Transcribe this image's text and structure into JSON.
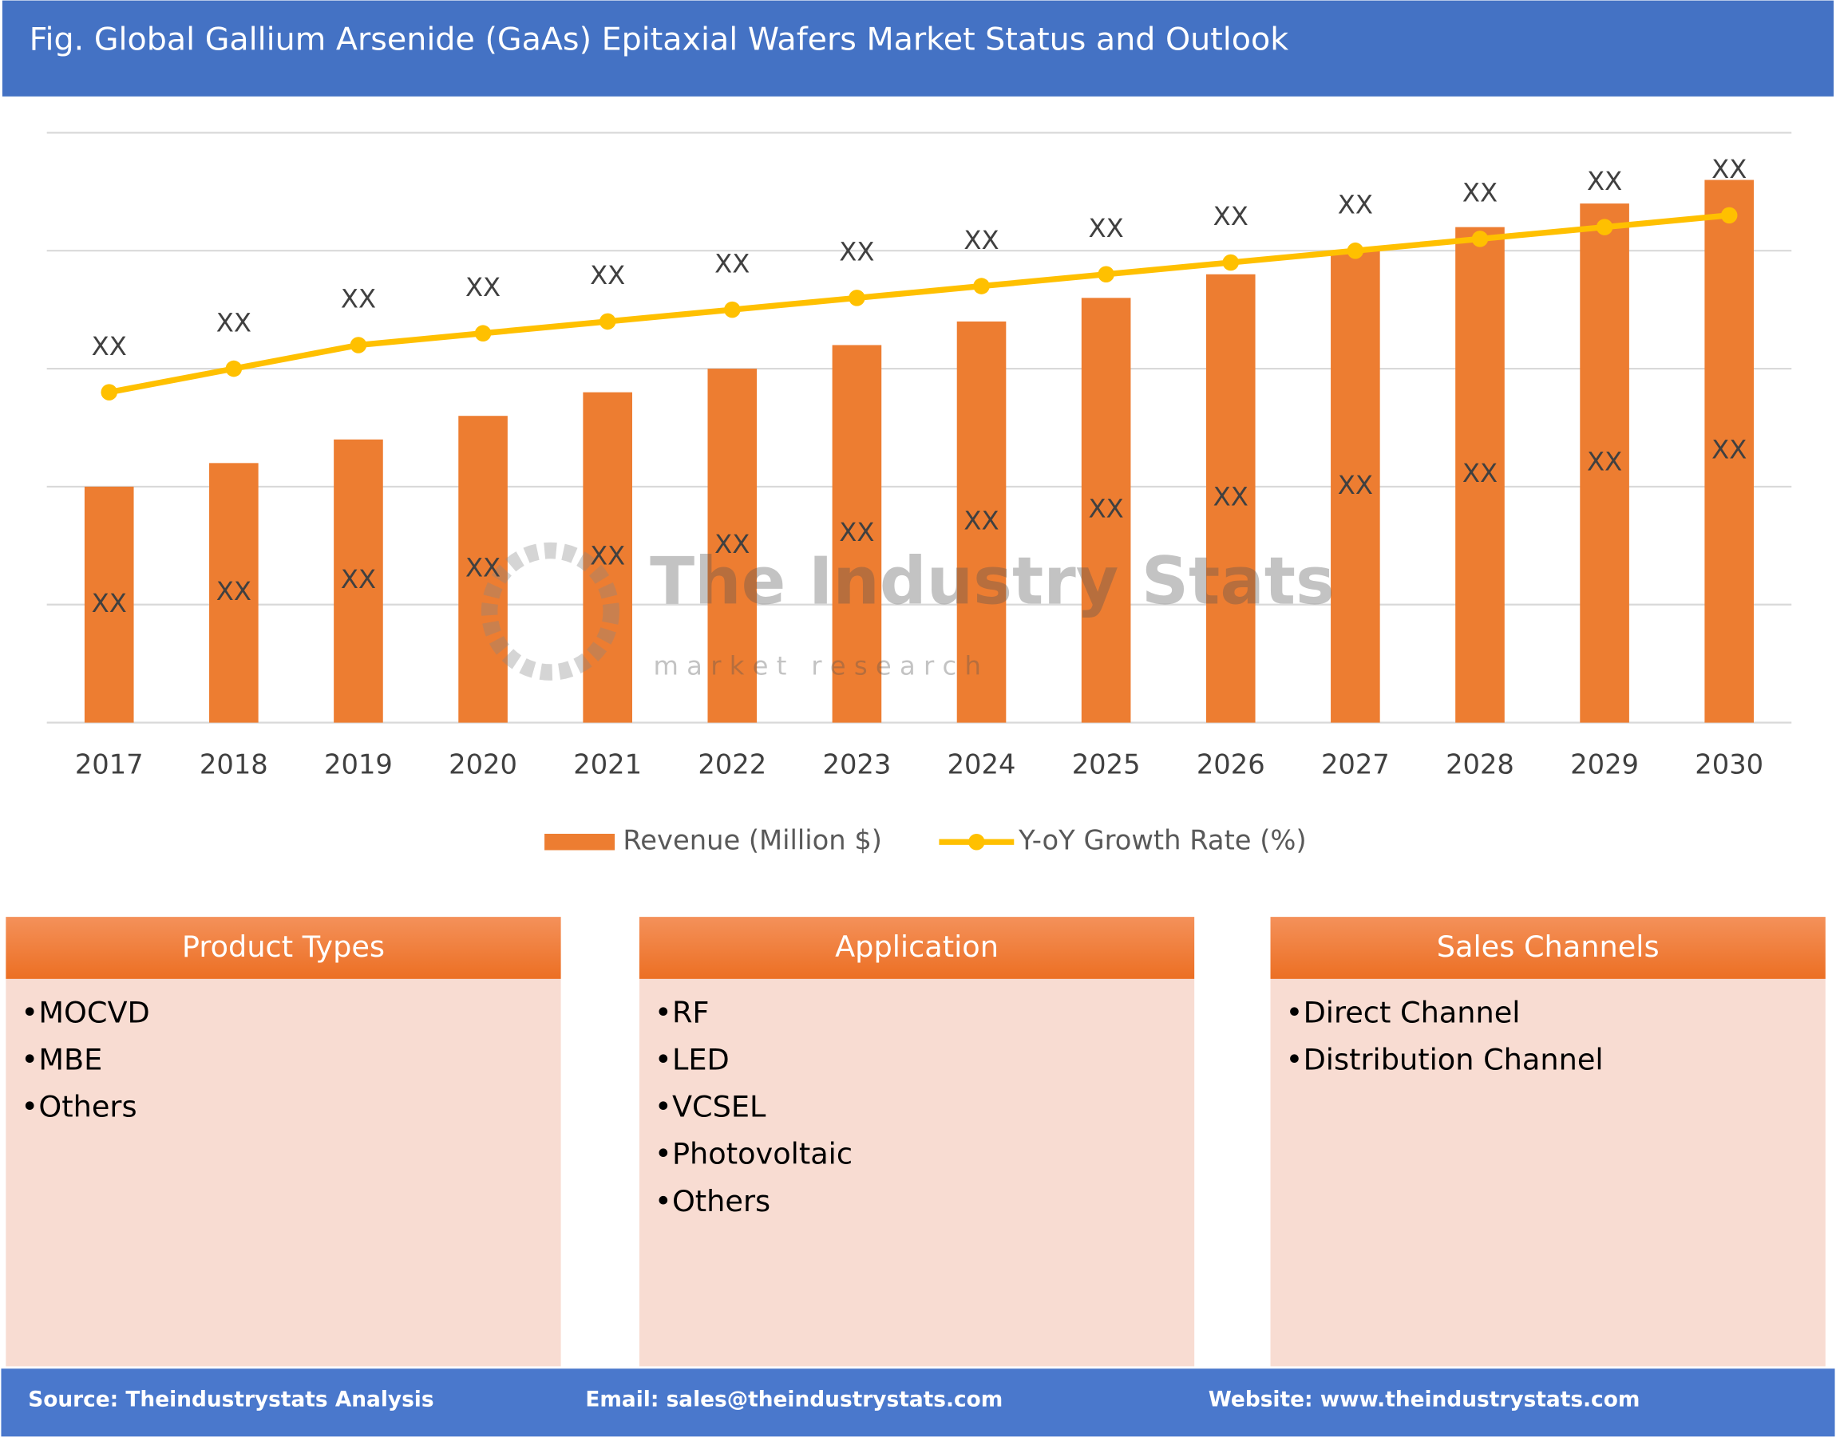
{
  "chart_data": {
    "type": "bar",
    "title": "Fig. Global Gallium Arsenide (GaAs) Epitaxial Wafers Market Status and Outlook",
    "categories": [
      "2017",
      "2018",
      "2019",
      "2020",
      "2021",
      "2022",
      "2023",
      "2024",
      "2025",
      "2026",
      "2027",
      "2028",
      "2029",
      "2030"
    ],
    "series": [
      {
        "name": "Revenue (Million $)",
        "type": "bar",
        "color": "#ed7d31",
        "values": [
          2.0,
          2.2,
          2.4,
          2.6,
          2.8,
          3.0,
          3.2,
          3.4,
          3.6,
          3.8,
          4.0,
          4.2,
          4.4,
          4.6
        ],
        "value_labels": [
          "XX",
          "XX",
          "XX",
          "XX",
          "XX",
          "XX",
          "XX",
          "XX",
          "XX",
          "XX",
          "XX",
          "XX",
          "XX",
          "XX"
        ]
      },
      {
        "name": "Y-oY Growth Rate (%)",
        "type": "line",
        "color": "#ffc000",
        "values": [
          2.8,
          3.0,
          3.2,
          3.3,
          3.4,
          3.5,
          3.6,
          3.7,
          3.8,
          3.9,
          4.0,
          4.1,
          4.2,
          4.3
        ],
        "value_labels": [
          "XX",
          "XX",
          "XX",
          "XX",
          "XX",
          "XX",
          "XX",
          "XX",
          "XX",
          "XX",
          "XX",
          "XX",
          "XX",
          "XX"
        ]
      }
    ],
    "ylim": [
      0,
      5
    ],
    "yticks": [
      0,
      1,
      2,
      3,
      4,
      5
    ],
    "grid": true
  },
  "watermark": {
    "title": "The Industry Stats",
    "subtitle": "m a r k e t   r e s e a r c h"
  },
  "panels": [
    {
      "title": "Product Types",
      "items": [
        "MOCVD",
        "MBE",
        "Others"
      ]
    },
    {
      "title": "Application",
      "items": [
        "RF",
        "LED",
        "VCSEL",
        "Photovoltaic",
        "Others"
      ]
    },
    {
      "title": "Sales Channels",
      "items": [
        "Direct Channel",
        "Distribution Channel"
      ]
    }
  ],
  "footer": {
    "source": "Source: Theindustrystats Analysis",
    "email": "Email: sales@theindustrystats.com",
    "website": "Website: www.theindustrystats.com"
  }
}
